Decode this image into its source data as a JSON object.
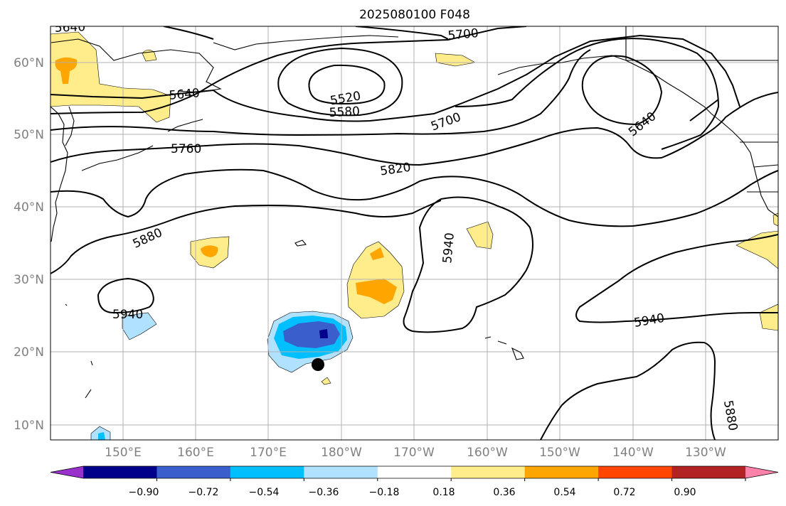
{
  "title": "2025080100 F048",
  "map": {
    "lat_ticks": [
      "60°N",
      "50°N",
      "40°N",
      "30°N",
      "20°N",
      "10°N"
    ],
    "lon_ticks": [
      "150°E",
      "160°E",
      "170°E",
      "180°W",
      "170°W",
      "160°W",
      "150°W",
      "140°W",
      "130°W"
    ],
    "contour_labels": [
      "5640",
      "5700",
      "5520",
      "5580",
      "5700",
      "5640",
      "5640",
      "5760",
      "5820",
      "5880",
      "5940",
      "5940",
      "5940",
      "5880"
    ],
    "marker": "storm-position-dot"
  },
  "colorbar": {
    "ticks": [
      "−0.90",
      "−0.72",
      "−0.54",
      "−0.36",
      "−0.18",
      "0.18",
      "0.36",
      "0.54",
      "0.72",
      "0.90"
    ],
    "colors": [
      "#9932CC",
      "#00008B",
      "#3A5FCD",
      "#00BFFF",
      "#B0E2FF",
      "#FFFFFF",
      "#FFEC8B",
      "#FFA500",
      "#FF4500",
      "#B22222",
      "#FF82AB"
    ]
  }
}
